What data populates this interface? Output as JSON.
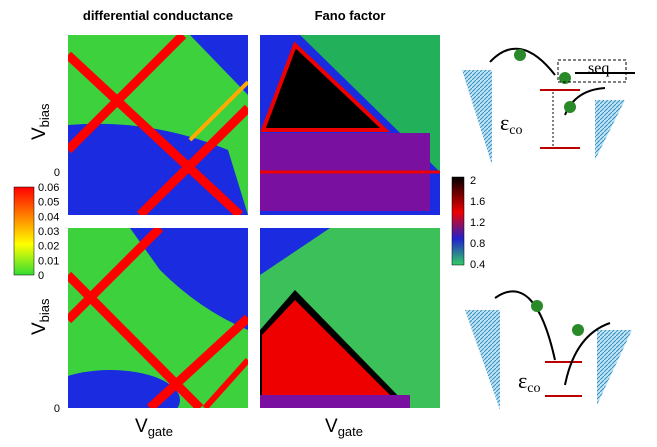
{
  "panels": {
    "left_title": "differential conductance",
    "right_title": "Fano factor"
  },
  "axes": {
    "y_label": {
      "main": "V",
      "sub": "bias"
    },
    "x_label": {
      "main": "V",
      "sub": "gate"
    },
    "y_zero": "0"
  },
  "colorbar_conductance": [
    "0.06",
    "0.05",
    "0.04",
    "0.03",
    "0.02",
    "0.01",
    "0"
  ],
  "colorbar_fano": [
    "2",
    "1.6",
    "1.2",
    "0.8",
    "0.4"
  ],
  "diagrams": {
    "seq": "seq",
    "energy": {
      "main": "ε",
      "sub": "co"
    }
  }
}
